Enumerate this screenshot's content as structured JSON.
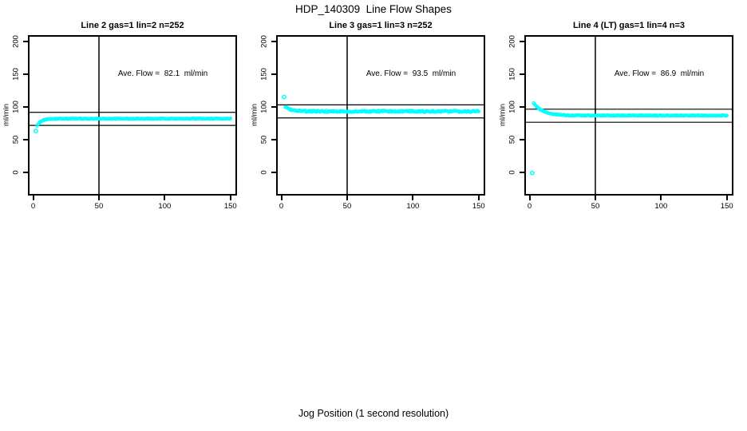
{
  "title": "HDP_140309  Line Flow Shapes",
  "x_axis_label": "Jog Position (1 second resolution)",
  "colors": {
    "points": "#00ffff",
    "lines": "#000000",
    "background": "#ffffff"
  },
  "chart_data": [
    {
      "type": "scatter",
      "title": "Line 2 gas=1 lin=2 n=252",
      "annotation": "Ave. Flow =  82.1  ml/min",
      "ave_flow_ml_min": 82.1,
      "n": 252,
      "ylabel": "ml/min",
      "x_ticks": [
        0,
        50,
        100,
        150
      ],
      "y_ticks": [
        0,
        50,
        100,
        150,
        200
      ],
      "xlim": [
        -4,
        155
      ],
      "ylim": [
        -35,
        210
      ],
      "ref_lines_y": [
        92.1,
        72.1
      ],
      "vline_x": 50,
      "outlier_points": [
        [
          2,
          63.5
        ]
      ],
      "band": {
        "x_start": 3,
        "x_end": 150,
        "x_step": 0.6,
        "y_base": 82.4,
        "y_amp": -11.0,
        "tau": 3.0,
        "jitter": 0.5
      },
      "key_points": [
        [
          2,
          63.5
        ],
        [
          3,
          71.4
        ],
        [
          5,
          77.0
        ],
        [
          8,
          80.1
        ],
        [
          12,
          81.7
        ],
        [
          25,
          82.4
        ],
        [
          50,
          82.4
        ],
        [
          100,
          82.4
        ],
        [
          150,
          82.4
        ]
      ]
    },
    {
      "type": "scatter",
      "title": "Line 3 gas=1 lin=3 n=252",
      "annotation": "Ave. Flow =  93.5  ml/min",
      "ave_flow_ml_min": 93.5,
      "n": 252,
      "ylabel": "ml/min",
      "x_ticks": [
        0,
        50,
        100,
        150
      ],
      "y_ticks": [
        0,
        50,
        100,
        150,
        200
      ],
      "xlim": [
        -4,
        155
      ],
      "ylim": [
        -35,
        210
      ],
      "ref_lines_y": [
        103.5,
        83.5
      ],
      "vline_x": 50,
      "outlier_points": [
        [
          2,
          115.5
        ]
      ],
      "band": {
        "x_start": 3,
        "x_end": 150,
        "x_step": 0.6,
        "y_base": 93.6,
        "y_amp": 6.5,
        "tau": 4.5,
        "jitter": 1.2
      },
      "key_points": [
        [
          2,
          115.5
        ],
        [
          3,
          100.1
        ],
        [
          6,
          96.9
        ],
        [
          10,
          95.0
        ],
        [
          20,
          93.8
        ],
        [
          50,
          93.6
        ],
        [
          100,
          93.5
        ],
        [
          150,
          93.4
        ]
      ]
    },
    {
      "type": "scatter",
      "title": "Line 4 (LT) gas=1 lin=4 n=3",
      "annotation": "Ave. Flow =  86.9  ml/min",
      "ave_flow_ml_min": 86.9,
      "n": 3,
      "ylabel": "ml/min",
      "x_ticks": [
        0,
        50,
        100,
        150
      ],
      "y_ticks": [
        0,
        50,
        100,
        150,
        200
      ],
      "xlim": [
        -4,
        155
      ],
      "ylim": [
        -35,
        210
      ],
      "ref_lines_y": [
        96.9,
        76.9
      ],
      "vline_x": 50,
      "outlier_points": [
        [
          2,
          -0.5
        ]
      ],
      "band": {
        "x_start": 3,
        "x_end": 150,
        "x_step": 0.6,
        "y_base": 87.2,
        "y_amp": 19.3,
        "tau": 6.8,
        "jitter": 0.6
      },
      "key_points": [
        [
          2,
          -0.5
        ],
        [
          3,
          106.5
        ],
        [
          6,
          99.6
        ],
        [
          10,
          94.1
        ],
        [
          20,
          88.8
        ],
        [
          40,
          87.3
        ],
        [
          100,
          87.2
        ],
        [
          150,
          87.2
        ]
      ]
    }
  ]
}
